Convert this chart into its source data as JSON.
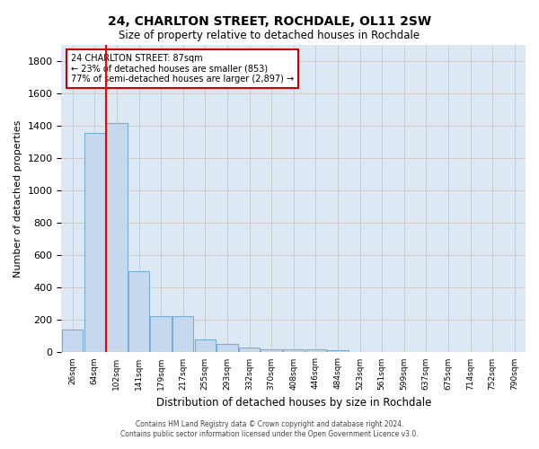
{
  "title": "24, CHARLTON STREET, ROCHDALE, OL11 2SW",
  "subtitle": "Size of property relative to detached houses in Rochdale",
  "xlabel": "Distribution of detached houses by size in Rochdale",
  "ylabel": "Number of detached properties",
  "bar_labels": [
    "26sqm",
    "64sqm",
    "102sqm",
    "141sqm",
    "179sqm",
    "217sqm",
    "255sqm",
    "293sqm",
    "332sqm",
    "370sqm",
    "408sqm",
    "446sqm",
    "484sqm",
    "523sqm",
    "561sqm",
    "599sqm",
    "637sqm",
    "675sqm",
    "714sqm",
    "752sqm",
    "790sqm"
  ],
  "bar_values": [
    140,
    1355,
    1415,
    500,
    225,
    225,
    80,
    50,
    28,
    20,
    20,
    20,
    15,
    0,
    0,
    0,
    0,
    0,
    0,
    0,
    0
  ],
  "bar_color": "#c5d8ee",
  "bar_edge_color": "#7aafd4",
  "property_sqm": 87,
  "property_label": "24 CHARLTON STREET: 87sqm",
  "annotation_line1": "← 23% of detached houses are smaller (853)",
  "annotation_line2": "77% of semi-detached houses are larger (2,897) →",
  "annotation_box_color": "#cc0000",
  "annotation_text_color": "#000000",
  "ylim": [
    0,
    1900
  ],
  "yticks": [
    0,
    200,
    400,
    600,
    800,
    1000,
    1200,
    1400,
    1600,
    1800
  ],
  "grid_color": "#cccccc",
  "bg_axes": "#dde8f5",
  "background_color": "#ffffff",
  "footer1": "Contains HM Land Registry data © Crown copyright and database right 2024.",
  "footer2": "Contains public sector information licensed under the Open Government Licence v3.0."
}
